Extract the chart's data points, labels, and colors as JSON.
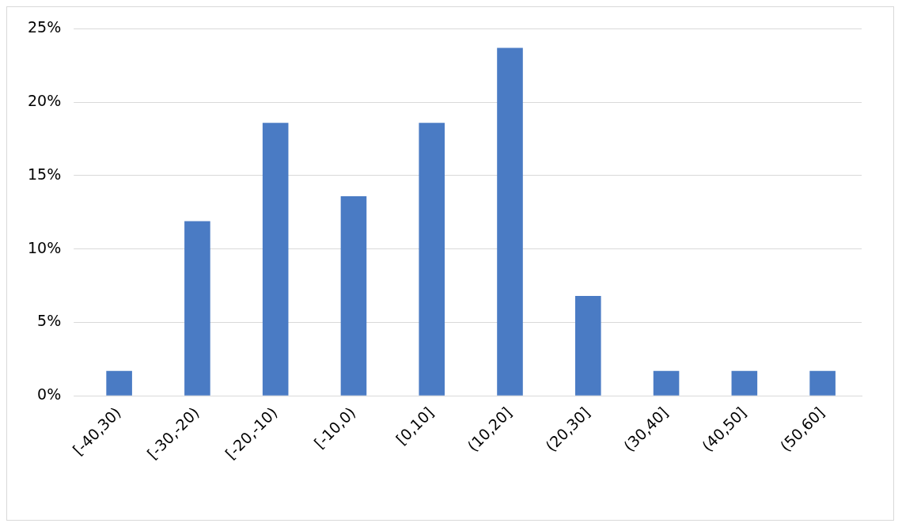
{
  "chart_data": {
    "type": "bar",
    "categories": [
      "[-40,30)",
      "[-30,-20)",
      "[-20,-10)",
      "[-10,0)",
      "[0,10]",
      "(10,20]",
      "(20,30]",
      "(30,40]",
      "(40,50]",
      "(50,60]"
    ],
    "values": [
      1.7,
      11.9,
      18.6,
      13.6,
      18.6,
      23.7,
      6.8,
      1.7,
      1.7,
      1.7
    ],
    "color": "#4a7bc4",
    "ylim": [
      0,
      25
    ],
    "yticks": [
      {
        "value": 0,
        "label": "0%"
      },
      {
        "value": 5,
        "label": "5%"
      },
      {
        "value": 10,
        "label": "10%"
      },
      {
        "value": 15,
        "label": "15%"
      },
      {
        "value": 20,
        "label": "20%"
      },
      {
        "value": 25,
        "label": "25%"
      }
    ],
    "grid": "y"
  }
}
